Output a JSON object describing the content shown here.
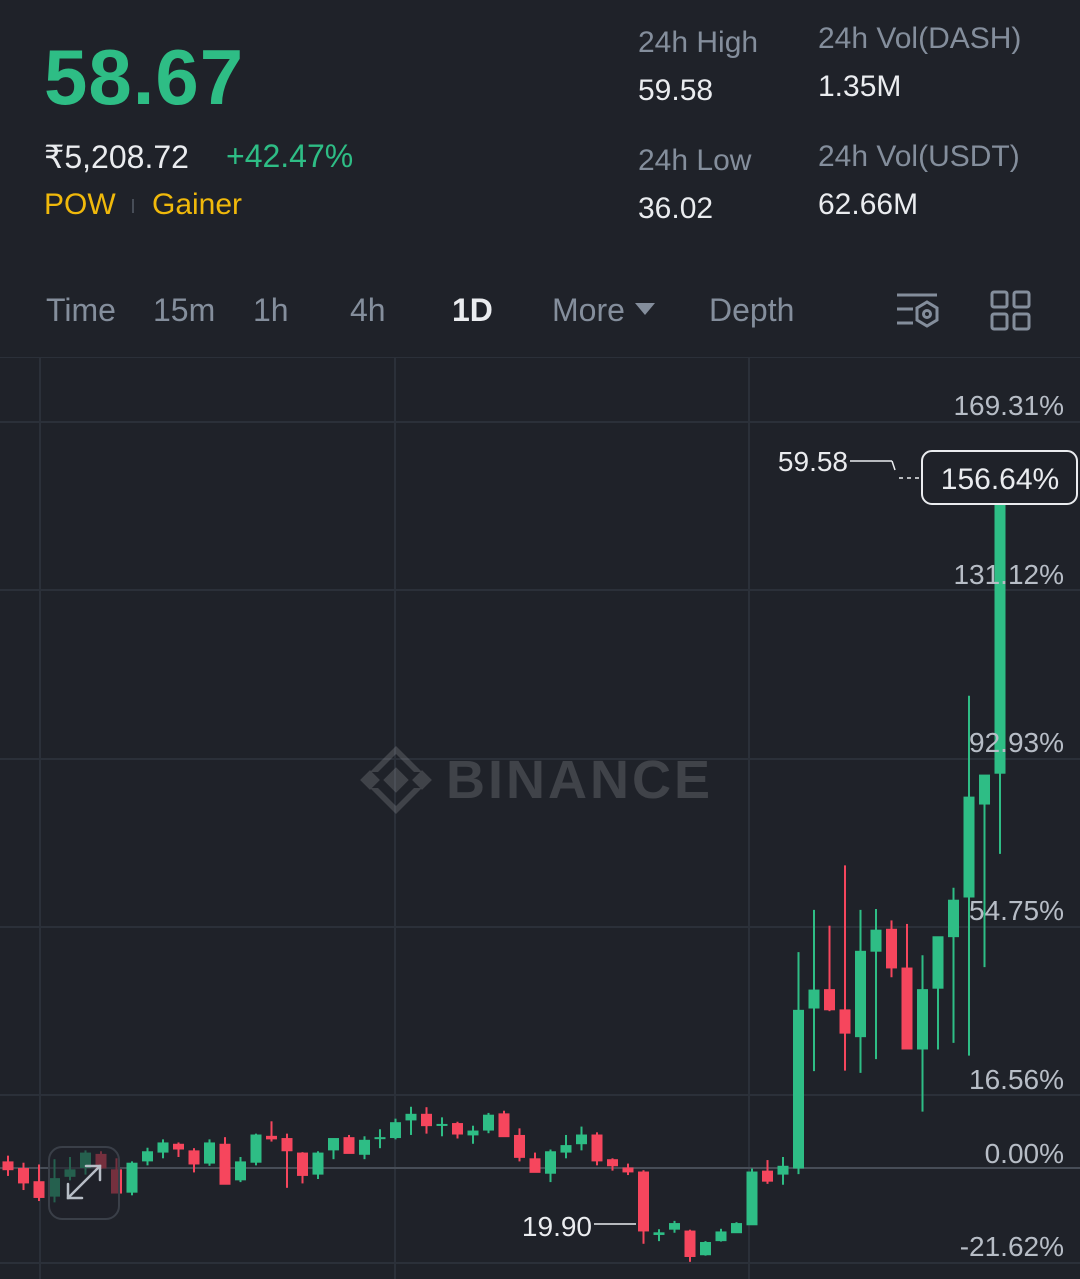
{
  "ticker": {
    "last_price": "58.67",
    "fiat_price": "₹5,208.72",
    "change_pct": "+42.47%",
    "tags": [
      "POW",
      "Gainer"
    ]
  },
  "stats": {
    "high_label": "24h High",
    "high_value": "59.58",
    "low_label": "24h Low",
    "low_value": "36.02",
    "vol_base_label": "24h Vol(DASH)",
    "vol_base_value": "1.35M",
    "vol_quote_label": "24h Vol(USDT)",
    "vol_quote_value": "62.66M"
  },
  "tabs": {
    "time": "Time",
    "m15": "15m",
    "h1": "1h",
    "h4": "4h",
    "d1": "1D",
    "more": "More",
    "depth": "Depth"
  },
  "colors": {
    "up": "#2ebd85",
    "down": "#f6465d",
    "accent": "#f0b90b",
    "background": "#1f2229"
  },
  "icons": {
    "indicator": "chart-settings-icon",
    "layout": "grid-layout-icon",
    "expand": "expand-icon"
  },
  "watermark": "BINANCE",
  "chart_data": {
    "type": "candlestick",
    "y_axis_labels": [
      "169.31%",
      "131.12%",
      "92.93%",
      "54.75%",
      "16.56%",
      "0.00%",
      "-21.62%"
    ],
    "current_pct_label": "156.64%",
    "high_annotation": "59.58",
    "low_annotation": "19.90",
    "ohlc_pct": [
      [
        1.5,
        2.8,
        -1.8,
        -0.5
      ],
      [
        0,
        1.2,
        -5,
        -3.5
      ],
      [
        -3,
        0.8,
        -7.5,
        -6.8
      ],
      [
        -6.5,
        2,
        -7.8,
        -2.3
      ],
      [
        -2,
        2.5,
        -2.8,
        -0.3
      ],
      [
        0,
        4,
        -1.5,
        3.5
      ],
      [
        3.2,
        3.8,
        -0.2,
        -0.1
      ],
      [
        -0.3,
        2.2,
        -5.5,
        -5.8
      ],
      [
        -5.6,
        1.5,
        -6.2,
        1.2
      ],
      [
        1.5,
        4.6,
        0.6,
        3.8
      ],
      [
        3.5,
        6.5,
        2.2,
        5.8
      ],
      [
        5.5,
        5.8,
        2.5,
        4.2
      ],
      [
        4,
        4.5,
        -1,
        0.8
      ],
      [
        1,
        6.5,
        0.5,
        5.8
      ],
      [
        5.5,
        7,
        -3.5,
        -3.8
      ],
      [
        -2.8,
        2.5,
        -3.2,
        1.5
      ],
      [
        1.2,
        7.8,
        0.6,
        7.6
      ],
      [
        7.3,
        10.6,
        6,
        6.5
      ],
      [
        6.8,
        7.8,
        -4.5,
        3.8
      ],
      [
        3.5,
        3.6,
        -3.5,
        -1.8
      ],
      [
        -1.5,
        3.8,
        -2.5,
        3.5
      ],
      [
        4,
        6.5,
        2,
        6.8
      ],
      [
        7,
        7.5,
        5,
        3.2
      ],
      [
        3,
        7.2,
        2,
        6.4
      ],
      [
        6.6,
        8.8,
        4.5,
        7
      ],
      [
        6.8,
        11.2,
        6.5,
        10.4
      ],
      [
        10.8,
        13.9,
        7.5,
        12.3
      ],
      [
        12.3,
        13.8,
        7.8,
        9.5
      ],
      [
        9.6,
        11.5,
        7.2,
        10
      ],
      [
        10.2,
        10.5,
        6.7,
        7.6
      ],
      [
        7.4,
        9.6,
        5.5,
        8.5
      ],
      [
        8.5,
        12.5,
        7.9,
        12.1
      ],
      [
        12.4,
        13,
        7.3,
        7
      ],
      [
        7.5,
        9,
        1.5,
        2.3
      ],
      [
        2.2,
        3.5,
        -1,
        -1.1
      ],
      [
        -1.3,
        4.2,
        -3.2,
        3.8
      ],
      [
        3.5,
        7.5,
        2.2,
        5.2
      ],
      [
        5.4,
        9.4,
        4,
        7.6
      ],
      [
        7.6,
        8.1,
        0.6,
        1.5
      ],
      [
        2,
        2.2,
        -0.6,
        0.4
      ],
      [
        0.1,
        1,
        -1.6,
        -1
      ],
      [
        -0.8,
        -0.5,
        -17.2,
        -14.4
      ],
      [
        -15.2,
        -13.9,
        -16.6,
        -14.6
      ],
      [
        -14,
        -12,
        -14.7,
        -12.5
      ],
      [
        -14.2,
        -14,
        -21.3,
        -20.2
      ],
      [
        -19.8,
        -16.6,
        -19.9,
        -16.8
      ],
      [
        -16.6,
        -13.8,
        -16.7,
        -14.4
      ],
      [
        -14.8,
        -12.3,
        -14.7,
        -12.5
      ],
      [
        -13,
        -0.1,
        -12.8,
        -0.8
      ],
      [
        -0.6,
        1.8,
        -3.6,
        -3.1
      ],
      [
        -1.5,
        2.5,
        -3.8,
        0.5
      ],
      [
        -0.1,
        49,
        -1.4,
        35.9
      ],
      [
        36.2,
        58.6,
        22,
        40.5
      ],
      [
        40.6,
        55,
        35.6,
        35.8
      ],
      [
        36,
        68.7,
        22.1,
        30.5
      ],
      [
        29.7,
        58.6,
        21.6,
        49.3
      ],
      [
        49.1,
        58.8,
        24.7,
        54.1
      ],
      [
        54.3,
        56.2,
        43.3,
        45.3
      ],
      [
        45.5,
        55.4,
        29.1,
        26.9
      ],
      [
        26.9,
        48.3,
        12.8,
        40.6
      ],
      [
        40.7,
        52,
        26.9,
        52.6
      ],
      [
        52.4,
        63.6,
        28.4,
        60.9
      ],
      [
        61.4,
        107.2,
        25.5,
        84.3
      ],
      [
        82.5,
        88,
        45.6,
        89.3
      ],
      [
        89.5,
        155.3,
        71.3,
        152.5
      ]
    ]
  }
}
